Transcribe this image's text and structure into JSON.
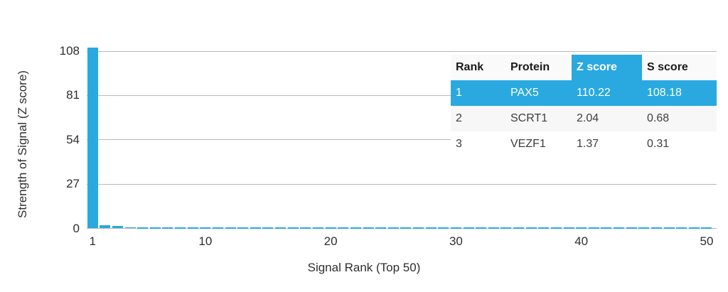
{
  "chart_data": {
    "type": "bar",
    "title": "",
    "xlabel": "Signal Rank (Top 50)",
    "ylabel": "Strength of Signal (Z score)",
    "x_range": [
      1,
      50
    ],
    "ylim": [
      0,
      115
    ],
    "yticks": [
      0,
      27,
      54,
      81,
      108
    ],
    "xticks": [
      1,
      10,
      20,
      30,
      40,
      50
    ],
    "grid": "horizontal",
    "legend": "none",
    "bar_color": "#29A9E0",
    "grid_color": "#bdb9bd",
    "values": [
      110.22,
      2.04,
      1.37,
      0.65,
      0.62,
      0.6,
      0.58,
      0.56,
      0.55,
      0.53,
      0.52,
      0.51,
      0.5,
      0.49,
      0.48,
      0.47,
      0.46,
      0.45,
      0.45,
      0.44,
      0.43,
      0.42,
      0.42,
      0.41,
      0.4,
      0.4,
      0.39,
      0.38,
      0.38,
      0.37,
      0.37,
      0.36,
      0.36,
      0.35,
      0.35,
      0.34,
      0.34,
      0.33,
      0.33,
      0.32,
      0.32,
      0.31,
      0.31,
      0.3,
      0.3,
      0.29,
      0.29,
      0.28,
      0.28,
      0.27
    ]
  },
  "table": {
    "accent_color": "#29A9E0",
    "headers": {
      "rank": "Rank",
      "protein": "Protein",
      "z": "Z score",
      "s": "S score"
    },
    "rows": [
      {
        "rank": "1",
        "protein": "PAX5",
        "z": "110.22",
        "s": "108.18",
        "highlighted": true
      },
      {
        "rank": "2",
        "protein": "SCRT1",
        "z": "2.04",
        "s": "0.68",
        "highlighted": false
      },
      {
        "rank": "3",
        "protein": "VEZF1",
        "z": "1.37",
        "s": "0.31",
        "highlighted": false
      }
    ]
  }
}
